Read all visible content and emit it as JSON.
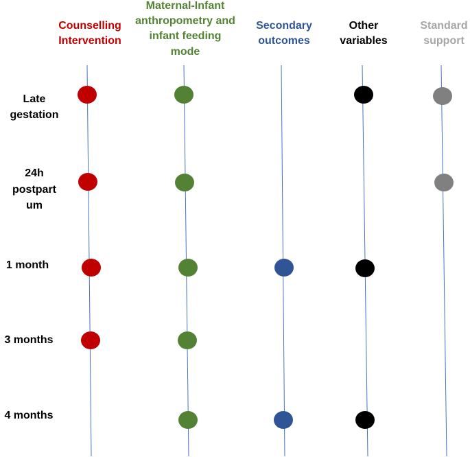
{
  "columns": [
    {
      "lines": [
        "Counselling",
        "Intervention"
      ]
    },
    {
      "lines": [
        "Maternal-Infant",
        "anthropometry and",
        "infant feeding",
        "mode"
      ]
    },
    {
      "lines": [
        "Secondary",
        "outcomes"
      ]
    },
    {
      "lines": [
        "Other",
        "variables"
      ]
    },
    {
      "lines": [
        "Standard",
        "support"
      ]
    }
  ],
  "rows": [
    {
      "lines": [
        "Late",
        "gestation"
      ]
    },
    {
      "lines": [
        "24h",
        "postpart",
        "um"
      ]
    },
    {
      "lines": [
        "1 month"
      ]
    },
    {
      "lines": [
        "3 months"
      ]
    },
    {
      "lines": [
        "4 months"
      ]
    }
  ]
}
